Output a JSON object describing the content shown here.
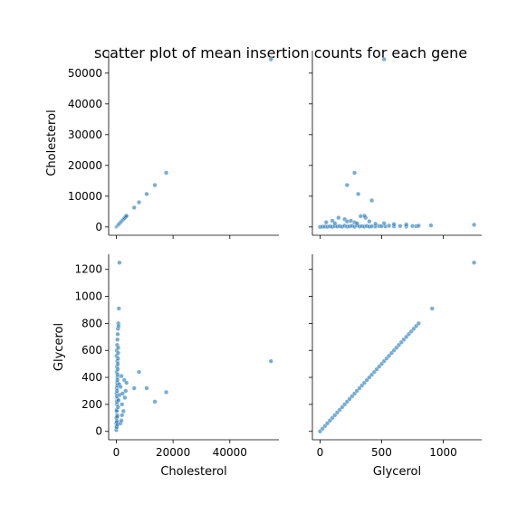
{
  "chart_data": {
    "type": "scatter",
    "title": "scatter plot of mean insertion counts for each gene",
    "variables": [
      "Cholesterol",
      "Glycerol"
    ],
    "panels": [
      {
        "row": 0,
        "col": 0,
        "x_var": "Cholesterol",
        "y_var": "Cholesterol",
        "xlim": [
          -2700,
          57300
        ],
        "ylim": [
          -2700,
          57300
        ],
        "points": [
          [
            0,
            0
          ],
          [
            60,
            60
          ],
          [
            150,
            150
          ],
          [
            250,
            250
          ],
          [
            400,
            400
          ],
          [
            550,
            550
          ],
          [
            700,
            700
          ],
          [
            850,
            850
          ],
          [
            1000,
            1000
          ],
          [
            1200,
            1200
          ],
          [
            1400,
            1400
          ],
          [
            1600,
            1600
          ],
          [
            1800,
            1800
          ],
          [
            2000,
            2000
          ],
          [
            2200,
            2200
          ],
          [
            2400,
            2400
          ],
          [
            2600,
            2600
          ],
          [
            2800,
            2800
          ],
          [
            3000,
            3000
          ],
          [
            3300,
            3300
          ],
          [
            3600,
            3600
          ],
          [
            6300,
            6300
          ],
          [
            8000,
            8000
          ],
          [
            10700,
            10700
          ],
          [
            13600,
            13600
          ],
          [
            17600,
            17600
          ],
          [
            54500,
            54500
          ]
        ]
      },
      {
        "row": 0,
        "col": 1,
        "x_var": "Glycerol",
        "y_var": "Cholesterol",
        "xlim": [
          -62,
          1312
        ],
        "ylim": [
          -2700,
          57300
        ],
        "points": [
          [
            0,
            0
          ],
          [
            20,
            80
          ],
          [
            40,
            120
          ],
          [
            60,
            60
          ],
          [
            80,
            200
          ],
          [
            100,
            50
          ],
          [
            120,
            300
          ],
          [
            140,
            150
          ],
          [
            160,
            250
          ],
          [
            180,
            90
          ],
          [
            200,
            400
          ],
          [
            220,
            120
          ],
          [
            240,
            200
          ],
          [
            260,
            350
          ],
          [
            280,
            80
          ],
          [
            300,
            500
          ],
          [
            320,
            150
          ],
          [
            340,
            250
          ],
          [
            360,
            120
          ],
          [
            380,
            300
          ],
          [
            400,
            100
          ],
          [
            420,
            200
          ],
          [
            450,
            150
          ],
          [
            480,
            300
          ],
          [
            500,
            250
          ],
          [
            530,
            180
          ],
          [
            560,
            400
          ],
          [
            600,
            200
          ],
          [
            650,
            300
          ],
          [
            700,
            150
          ],
          [
            750,
            300
          ],
          [
            780,
            250
          ],
          [
            800,
            400
          ],
          [
            900,
            500
          ],
          [
            1250,
            700
          ],
          [
            50,
            1500
          ],
          [
            100,
            2000
          ],
          [
            120,
            1200
          ],
          [
            150,
            3000
          ],
          [
            200,
            2500
          ],
          [
            220,
            1800
          ],
          [
            250,
            2000
          ],
          [
            280,
            1500
          ],
          [
            300,
            1200
          ],
          [
            330,
            3500
          ],
          [
            370,
            3000
          ],
          [
            400,
            1800
          ],
          [
            450,
            1000
          ],
          [
            520,
            1200
          ],
          [
            600,
            900
          ],
          [
            700,
            800
          ],
          [
            220,
            13600
          ],
          [
            280,
            17600
          ],
          [
            310,
            10700
          ],
          [
            360,
            3600
          ],
          [
            420,
            8600
          ],
          [
            520,
            54500
          ]
        ]
      },
      {
        "row": 1,
        "col": 0,
        "x_var": "Cholesterol",
        "y_var": "Glycerol",
        "xlim": [
          -2700,
          57300
        ],
        "ylim": [
          -62,
          1312
        ],
        "points": [
          [
            0,
            10
          ],
          [
            100,
            40
          ],
          [
            200,
            80
          ],
          [
            300,
            120
          ],
          [
            150,
            160
          ],
          [
            250,
            200
          ],
          [
            350,
            240
          ],
          [
            100,
            280
          ],
          [
            200,
            320
          ],
          [
            300,
            360
          ],
          [
            400,
            400
          ],
          [
            150,
            440
          ],
          [
            250,
            480
          ],
          [
            350,
            520
          ],
          [
            100,
            560
          ],
          [
            200,
            600
          ],
          [
            300,
            640
          ],
          [
            400,
            680
          ],
          [
            500,
            720
          ],
          [
            600,
            760
          ],
          [
            700,
            800
          ],
          [
            800,
            780
          ],
          [
            900,
            910
          ],
          [
            1100,
            1250
          ],
          [
            0,
            60
          ],
          [
            50,
            100
          ],
          [
            120,
            150
          ],
          [
            180,
            220
          ],
          [
            230,
            260
          ],
          [
            280,
            300
          ],
          [
            330,
            340
          ],
          [
            380,
            380
          ],
          [
            430,
            420
          ],
          [
            480,
            460
          ],
          [
            530,
            500
          ],
          [
            580,
            540
          ],
          [
            630,
            580
          ],
          [
            680,
            620
          ],
          [
            120,
            30
          ],
          [
            220,
            70
          ],
          [
            320,
            110
          ],
          [
            420,
            50
          ],
          [
            600,
            180
          ],
          [
            800,
            230
          ],
          [
            1000,
            350
          ],
          [
            1200,
            270
          ],
          [
            1500,
            330
          ],
          [
            1800,
            410
          ],
          [
            2000,
            200
          ],
          [
            2200,
            280
          ],
          [
            2500,
            150
          ],
          [
            2800,
            380
          ],
          [
            3000,
            250
          ],
          [
            3300,
            300
          ],
          [
            3600,
            360
          ],
          [
            1500,
            60
          ],
          [
            1800,
            80
          ],
          [
            2000,
            120
          ],
          [
            6300,
            320
          ],
          [
            8000,
            440
          ],
          [
            10700,
            320
          ],
          [
            13600,
            220
          ],
          [
            17600,
            290
          ],
          [
            54500,
            520
          ]
        ]
      },
      {
        "row": 1,
        "col": 1,
        "x_var": "Glycerol",
        "y_var": "Glycerol",
        "xlim": [
          -62,
          1312
        ],
        "ylim": [
          -62,
          1312
        ],
        "points": [
          [
            0,
            0
          ],
          [
            20,
            20
          ],
          [
            40,
            40
          ],
          [
            60,
            60
          ],
          [
            80,
            80
          ],
          [
            100,
            100
          ],
          [
            120,
            120
          ],
          [
            140,
            140
          ],
          [
            160,
            160
          ],
          [
            180,
            180
          ],
          [
            200,
            200
          ],
          [
            220,
            220
          ],
          [
            240,
            240
          ],
          [
            260,
            260
          ],
          [
            280,
            280
          ],
          [
            300,
            300
          ],
          [
            320,
            320
          ],
          [
            340,
            340
          ],
          [
            360,
            360
          ],
          [
            380,
            380
          ],
          [
            400,
            400
          ],
          [
            420,
            420
          ],
          [
            440,
            440
          ],
          [
            460,
            460
          ],
          [
            480,
            480
          ],
          [
            500,
            500
          ],
          [
            520,
            520
          ],
          [
            540,
            540
          ],
          [
            560,
            560
          ],
          [
            580,
            580
          ],
          [
            600,
            600
          ],
          [
            620,
            620
          ],
          [
            640,
            640
          ],
          [
            660,
            660
          ],
          [
            680,
            680
          ],
          [
            700,
            700
          ],
          [
            720,
            720
          ],
          [
            740,
            740
          ],
          [
            760,
            760
          ],
          [
            780,
            780
          ],
          [
            800,
            800
          ],
          [
            910,
            910
          ],
          [
            1250,
            1250
          ]
        ]
      }
    ],
    "tick_labels": {
      "Cholesterol": [
        "0",
        "10000",
        "20000",
        "30000",
        "40000",
        "50000"
      ],
      "Glycerol": [
        "0",
        "200",
        "400",
        "600",
        "800",
        "1000",
        "1200"
      ],
      "Cholesterol_bottom": [
        "0",
        "20000",
        "40000"
      ],
      "Glycerol_bottom": [
        "0",
        "500",
        "1000"
      ]
    },
    "xlabels": [
      "Cholesterol",
      "Glycerol"
    ],
    "ylabels": [
      "Cholesterol",
      "Glycerol"
    ],
    "grid": false,
    "point_color": "#1f77b4"
  }
}
